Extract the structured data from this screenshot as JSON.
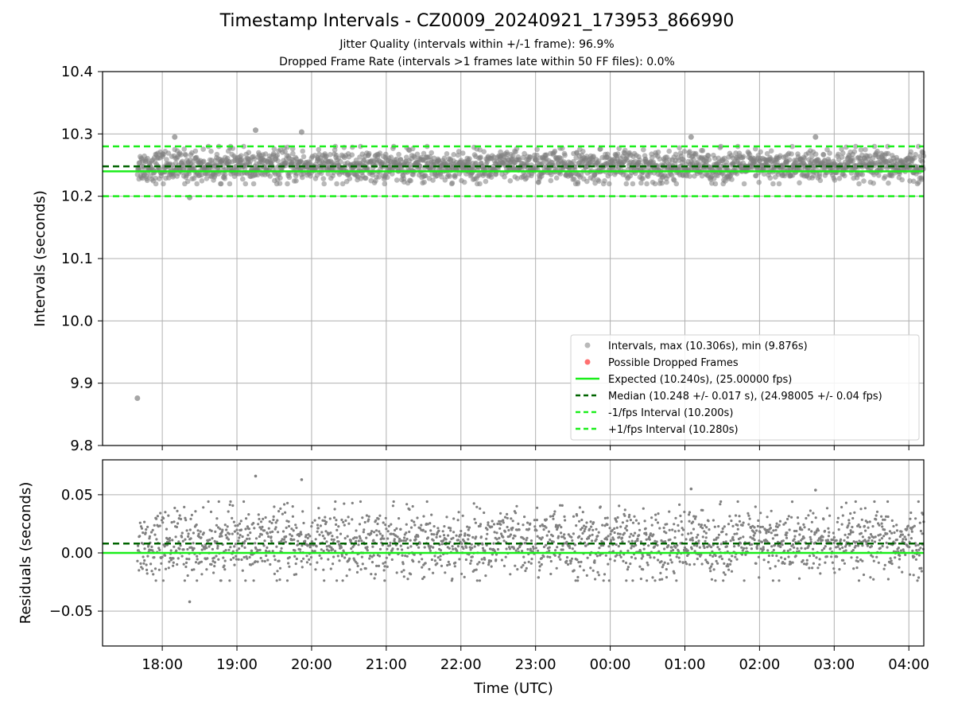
{
  "title": "Timestamp Intervals - CZ0009_20240921_173953_866990",
  "subtitle_1": "Jitter Quality (intervals within +/-1 frame): 96.9%",
  "subtitle_2": "Dropped Frame Rate (intervals >1 frames late within 50 FF files): 0.0%",
  "colors": {
    "points": "#808080",
    "expected": "#1aee1a",
    "median": "#006400",
    "interval_bounds": "#1aee1a",
    "dropped": "#ff3333",
    "grid": "#b0b0b0"
  },
  "chart_data": [
    {
      "type": "scatter",
      "panel": "top",
      "ylabel": "Intervals (seconds)",
      "ylim": [
        9.8,
        10.4
      ],
      "yticks": [
        "10.4",
        "10.3",
        "10.2",
        "10.1",
        "10.0",
        "9.9",
        "9.8"
      ],
      "xlim": [
        "17:12",
        "04:12"
      ],
      "grid": true,
      "legend_position": "lower-right",
      "series": [
        {
          "name": "Intervals, max (10.306s), min (9.876s)",
          "kind": "points",
          "center": 10.248,
          "spread": 0.017,
          "outliers": [
            {
              "x": "17:40",
              "y": 9.876
            },
            {
              "x": "19:15",
              "y": 10.306
            },
            {
              "x": "19:52",
              "y": 10.303
            },
            {
              "x": "18:10",
              "y": 10.295
            },
            {
              "x": "01:05",
              "y": 10.295
            },
            {
              "x": "02:45",
              "y": 10.295
            },
            {
              "x": "18:22",
              "y": 10.198
            }
          ]
        },
        {
          "name": "Possible Dropped Frames",
          "kind": "points",
          "values": []
        },
        {
          "name": "Expected (10.240s), (25.00000 fps)",
          "kind": "hline",
          "y": 10.24,
          "style": "solid"
        },
        {
          "name": "Median (10.248 +/- 0.017 s), (24.98005 +/- 0.04 fps)",
          "kind": "hline",
          "y": 10.248,
          "style": "dashed"
        },
        {
          "name": "-1/fps Interval (10.200s)",
          "kind": "hline",
          "y": 10.2,
          "style": "dashed"
        },
        {
          "name": "+1/fps Interval (10.280s)",
          "kind": "hline",
          "y": 10.28,
          "style": "dashed"
        }
      ]
    },
    {
      "type": "scatter",
      "panel": "bottom",
      "xlabel": "Time (UTC)",
      "ylabel": "Residuals (seconds)",
      "ylim": [
        -0.08,
        0.08
      ],
      "yticks": [
        "0.05",
        "0.00",
        "−0.05"
      ],
      "ytick_values": [
        0.05,
        0.0,
        -0.05
      ],
      "xticks": [
        "18:00",
        "19:00",
        "20:00",
        "21:00",
        "22:00",
        "23:00",
        "00:00",
        "01:00",
        "02:00",
        "03:00",
        "04:00"
      ],
      "xlim": [
        "17:12",
        "04:12"
      ],
      "grid": true,
      "series": [
        {
          "kind": "points",
          "center": 0.008,
          "spread": 0.017,
          "x_start": "17:40",
          "x_end": "04:12",
          "outliers": [
            {
              "x": "19:15",
              "y": 0.066
            },
            {
              "x": "19:52",
              "y": 0.063
            },
            {
              "x": "18:22",
              "y": -0.042
            },
            {
              "x": "01:05",
              "y": 0.055
            },
            {
              "x": "02:45",
              "y": 0.054
            }
          ]
        },
        {
          "kind": "hline",
          "y": 0.0,
          "style": "solid",
          "role": "expected"
        },
        {
          "kind": "hline",
          "y": 0.008,
          "style": "dashed",
          "role": "median"
        }
      ]
    }
  ]
}
